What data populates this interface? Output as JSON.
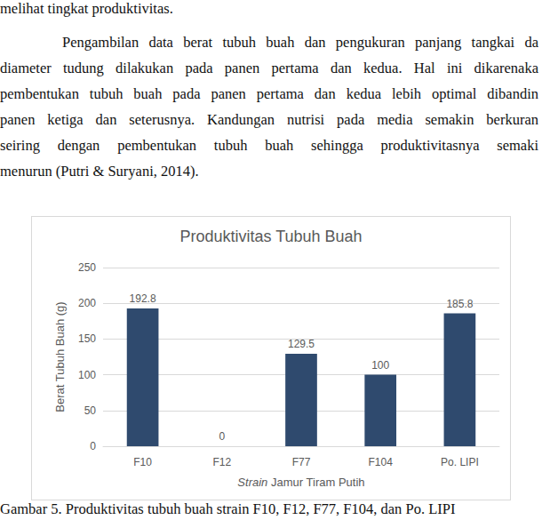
{
  "page": {
    "intro_line": "melihat tingkat produktivitas.",
    "paragraph": [
      "Pengambilan data berat tubuh buah dan pengukuran panjang tangkai da",
      "diameter tudung dilakukan pada panen pertama dan kedua. Hal ini dikarenaka",
      "pembentukan tubuh buah pada panen pertama dan kedua lebih optimal dibandin",
      "panen ketiga dan seterusnya. Kandungan nutrisi pada media semakin berkuran",
      "seiring dengan pembentukan tubuh buah sehingga produktivitasnya semaki",
      "menurun (Putri & Suryani, 2014)."
    ],
    "caption": "Gambar 5. Produktivitas tubuh buah strain F10, F12, F77, F104, dan Po. LIPI"
  },
  "chart_data": {
    "type": "bar",
    "title": "Produktivitas Tubuh Buah",
    "x_label": "Strain Jamur Tiram Putih",
    "y_label": "Berat Tubuh Buah (g)",
    "categories": [
      "F10",
      "F12",
      "F77",
      "F104",
      "Po. LIPI"
    ],
    "values": [
      192.8,
      0,
      129.5,
      100,
      185.8
    ],
    "color": "#2f4a6e",
    "ylim": [
      0,
      250
    ],
    "yticks": [
      0,
      50,
      100,
      150,
      200,
      250
    ],
    "grid": true,
    "data_labels": true
  }
}
